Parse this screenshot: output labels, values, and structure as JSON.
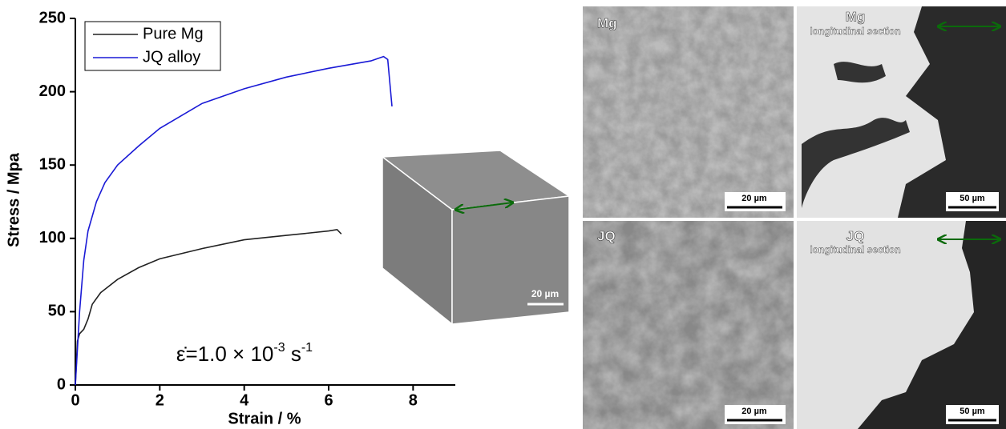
{
  "chart_data": {
    "type": "line",
    "xlabel": "Strain / %",
    "ylabel": "Stress / Mpa",
    "xlim": [
      0,
      9
    ],
    "xticks": [
      0,
      2,
      4,
      6,
      8
    ],
    "ylim": [
      0,
      250
    ],
    "yticks": [
      0,
      50,
      100,
      150,
      200,
      250
    ],
    "legend": "top-left",
    "annotation": [
      "ε̇=1.0 × 10",
      "-3",
      " s",
      "-1"
    ],
    "series": [
      {
        "name": "Pure Mg",
        "color": "#222222",
        "x": [
          0,
          0.05,
          0.1,
          0.2,
          0.3,
          0.4,
          0.6,
          1,
          1.5,
          2,
          3,
          4,
          5,
          6,
          6.2,
          6.3
        ],
        "values": [
          0,
          30,
          35,
          38,
          45,
          55,
          63,
          72,
          80,
          86,
          93,
          99,
          102,
          105,
          106,
          103
        ]
      },
      {
        "name": "JQ alloy",
        "color": "#1a1ad6",
        "x": [
          0,
          0.1,
          0.2,
          0.3,
          0.5,
          0.7,
          1,
          1.5,
          2,
          3,
          4,
          5,
          6,
          7,
          7.3,
          7.4,
          7.5
        ],
        "values": [
          0,
          50,
          85,
          105,
          125,
          138,
          150,
          163,
          175,
          192,
          202,
          210,
          216,
          221,
          224,
          222,
          190
        ]
      }
    ]
  },
  "inset": {
    "scale_bar": "20 µm"
  },
  "micrographs": [
    {
      "label": "Mg",
      "scale_bar": "20 µm"
    },
    {
      "label": "Mg",
      "sublabel": "longitudinal section",
      "scale_bar": "50 µm"
    },
    {
      "label": "JQ",
      "scale_bar": "20 µm"
    },
    {
      "label": "JQ",
      "sublabel": "longitudinal section",
      "scale_bar": "50 µm"
    }
  ]
}
